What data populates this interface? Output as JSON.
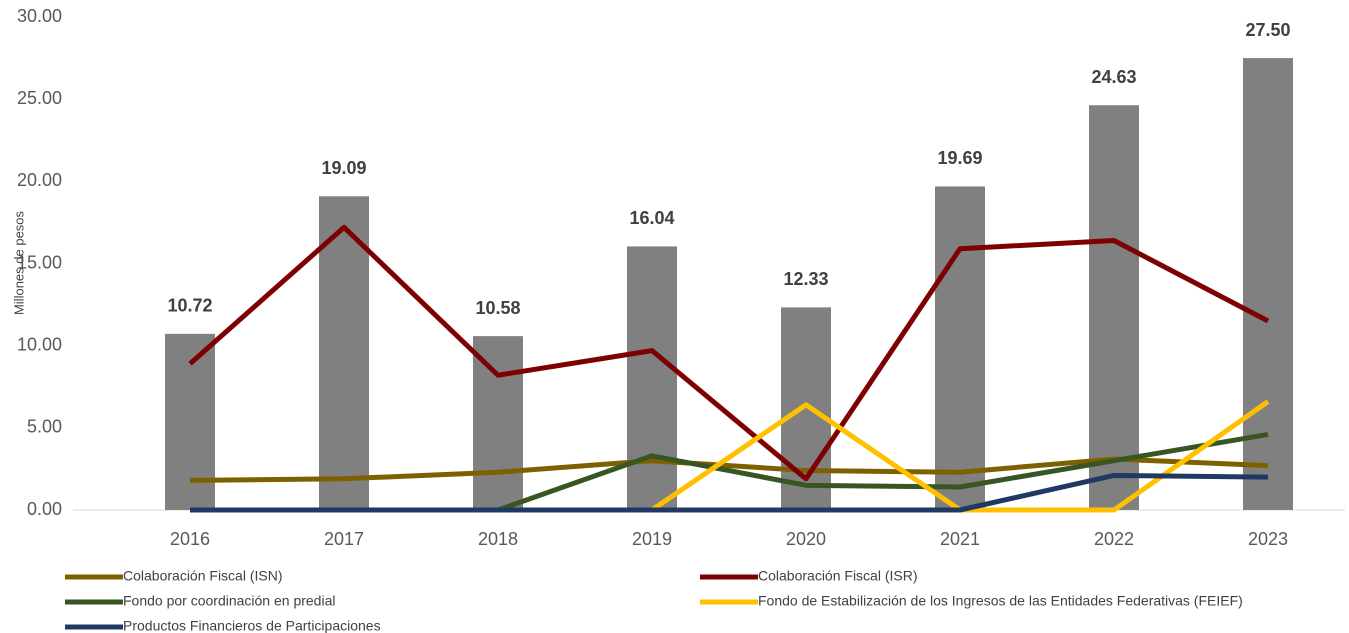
{
  "chart_data": {
    "type": "bar_line",
    "ylabel": "Millones de pesos",
    "categories": [
      "2016",
      "2017",
      "2018",
      "2019",
      "2020",
      "2021",
      "2022",
      "2023"
    ],
    "values": [
      10.72,
      19.09,
      10.58,
      16.04,
      12.33,
      19.69,
      24.63,
      27.5
    ],
    "value_labels": [
      "10.72",
      "19.09",
      "10.58",
      "16.04",
      "12.33",
      "19.69",
      "24.63",
      "27.50"
    ],
    "color": "#808080",
    "series": [
      {
        "name": "Colaboración Fiscal (ISN)",
        "color": "#7f6000",
        "values": [
          1.8,
          1.9,
          2.3,
          3.0,
          2.4,
          2.3,
          3.1,
          2.7
        ]
      },
      {
        "name": "Colaboración Fiscal (ISR)",
        "color": "#7f0000",
        "values": [
          8.9,
          17.2,
          8.2,
          9.7,
          1.9,
          15.9,
          16.4,
          11.5
        ]
      },
      {
        "name": "Fondo por coordinación en predial",
        "color": "#375623",
        "values": [
          0,
          0,
          0,
          3.3,
          1.5,
          1.4,
          3.0,
          4.6
        ]
      },
      {
        "name": "Fondo de Estabilización de los Ingresos de las Entidades Federativas (FEIEF)",
        "color": "#ffc000",
        "values": [
          0,
          0,
          0,
          0,
          6.4,
          0,
          0,
          6.6
        ]
      },
      {
        "name": "Productos Financieros de Participaciones",
        "color": "#203864",
        "values": [
          0,
          0,
          0,
          0,
          0,
          0,
          2.1,
          2.0
        ]
      }
    ],
    "ylim": [
      0,
      30
    ],
    "yticks": [
      {
        "value": 0,
        "label": "0.00"
      },
      {
        "value": 5,
        "label": "5.00"
      },
      {
        "value": 10,
        "label": "10.00"
      },
      {
        "value": 15,
        "label": "15.00"
      },
      {
        "value": 20,
        "label": "20.00"
      },
      {
        "value": 25,
        "label": "25.00"
      },
      {
        "value": 30,
        "label": "30.00"
      }
    ],
    "grid": false,
    "legend": "bottom"
  }
}
